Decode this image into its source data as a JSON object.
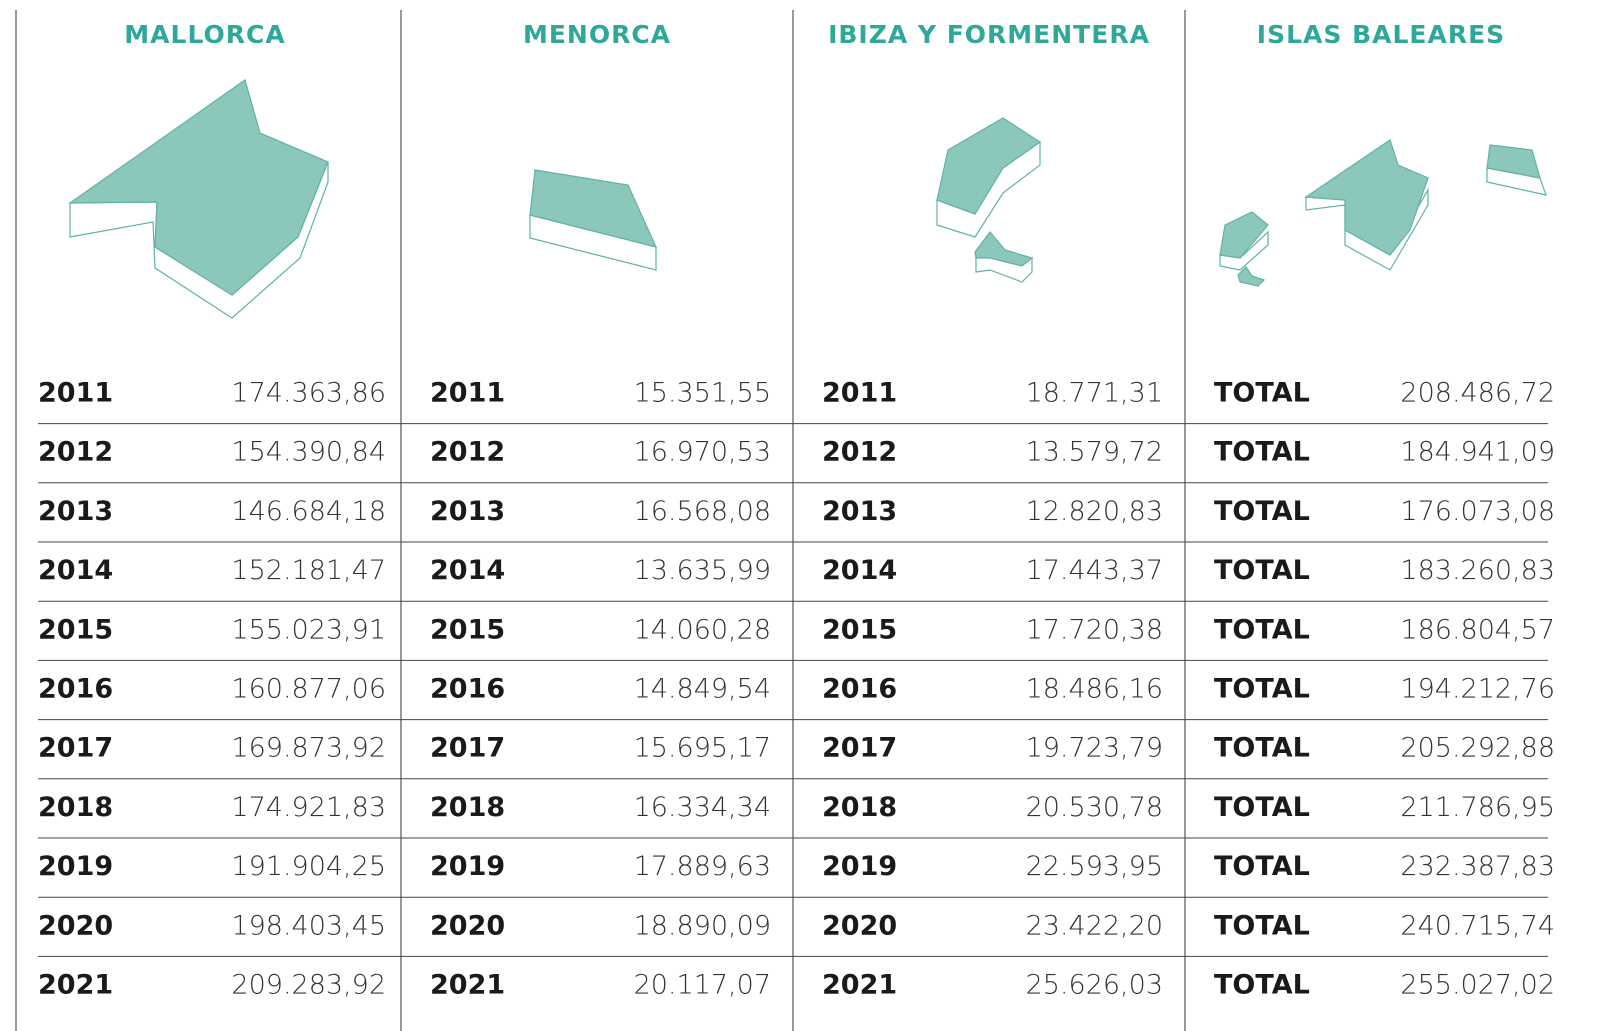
{
  "columns": [
    {
      "title": "MALLORCA",
      "rows": [
        [
          "2011",
          "174.363,86"
        ],
        [
          "2012",
          "154.390,84"
        ],
        [
          "2013",
          "146.684,18"
        ],
        [
          "2014",
          "152.181,47"
        ],
        [
          "2015",
          "155.023,91"
        ],
        [
          "2016",
          "160.877,06"
        ],
        [
          "2017",
          "169.873,92"
        ],
        [
          "2018",
          "174.921,83"
        ],
        [
          "2019",
          "191.904,25"
        ],
        [
          "2020",
          "198.403,45"
        ],
        [
          "2021",
          "209.283,92"
        ]
      ]
    },
    {
      "title": "MENORCA",
      "rows": [
        [
          "2011",
          "15.351,55"
        ],
        [
          "2012",
          "16.970,53"
        ],
        [
          "2013",
          "16.568,08"
        ],
        [
          "2014",
          "13.635,99"
        ],
        [
          "2015",
          "14.060,28"
        ],
        [
          "2016",
          "14.849,54"
        ],
        [
          "2017",
          "15.695,17"
        ],
        [
          "2018",
          "16.334,34"
        ],
        [
          "2019",
          "17.889,63"
        ],
        [
          "2020",
          "18.890,09"
        ],
        [
          "2021",
          "20.117,07"
        ]
      ]
    },
    {
      "title": "IBIZA Y FORMENTERA",
      "rows": [
        [
          "2011",
          "18.771,31"
        ],
        [
          "2012",
          "13.579,72"
        ],
        [
          "2013",
          "12.820,83"
        ],
        [
          "2014",
          "17.443,37"
        ],
        [
          "2015",
          "17.720,38"
        ],
        [
          "2016",
          "18.486,16"
        ],
        [
          "2017",
          "19.723,79"
        ],
        [
          "2018",
          "20.530,78"
        ],
        [
          "2019",
          "22.593,95"
        ],
        [
          "2020",
          "23.422,20"
        ],
        [
          "2021",
          "25.626,03"
        ]
      ]
    },
    {
      "title": "ISLAS BALEARES",
      "rows": [
        [
          "TOTAL",
          "208.486,72"
        ],
        [
          "TOTAL",
          "184.941,09"
        ],
        [
          "TOTAL",
          "176.073,08"
        ],
        [
          "TOTAL",
          "183.260,83"
        ],
        [
          "TOTAL",
          "186.804,57"
        ],
        [
          "TOTAL",
          "194.212,76"
        ],
        [
          "TOTAL",
          "205.292,88"
        ],
        [
          "TOTAL",
          "211.786,95"
        ],
        [
          "TOTAL",
          "232.387,83"
        ],
        [
          "TOTAL",
          "240.715,74"
        ],
        [
          "TOTAL",
          "255.027,02"
        ]
      ]
    }
  ]
}
